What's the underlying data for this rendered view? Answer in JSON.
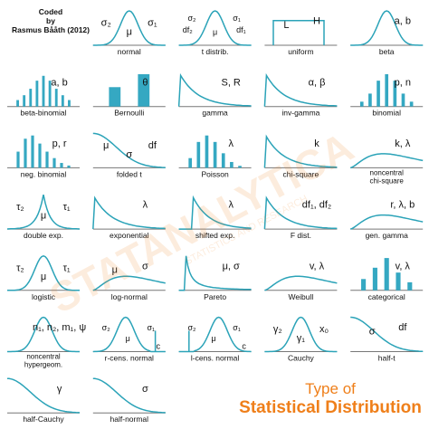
{
  "credit": {
    "line1": "Coded",
    "line2": "by",
    "line3": "Rasmus Bååth (2012)"
  },
  "watermark": {
    "main": "STATANALYTICA",
    "sub": "STATISTICS AND RESEARCH"
  },
  "footer": {
    "line1": "Type of",
    "line2": "Statistical Distribution"
  },
  "colors": {
    "curve": "#2ba3b8",
    "bar": "#35a8c2",
    "baseline": "#777777",
    "text": "#111111",
    "accent": "#ef7f1a"
  },
  "panels": [
    {
      "id": "normal",
      "name": "normal",
      "shape": "bell",
      "params": [
        {
          "t": "σ₂"
        },
        {
          "t": "μ"
        },
        {
          "t": "σ₁"
        }
      ]
    },
    {
      "id": "t",
      "name": "t distrib.",
      "shape": "bell",
      "params": [
        {
          "t": "σ₂"
        },
        {
          "t": "σ₁"
        },
        {
          "t": "df₂"
        },
        {
          "t": "μ"
        },
        {
          "t": "df₁"
        }
      ]
    },
    {
      "id": "uniform",
      "name": "uniform",
      "shape": "uniform",
      "params": [
        {
          "t": "L"
        },
        {
          "t": "H"
        }
      ]
    },
    {
      "id": "beta",
      "name": "beta",
      "shape": "bell",
      "params": [
        {
          "t": "a, b"
        }
      ]
    },
    {
      "id": "betabinom",
      "name": "beta-binomial",
      "shape": "bars",
      "bars": [
        0.2,
        0.35,
        0.55,
        0.8,
        0.95,
        0.8,
        0.55,
        0.35,
        0.2
      ],
      "params": [
        {
          "t": "a, b"
        }
      ]
    },
    {
      "id": "bernoulli",
      "name": "Bernoulli",
      "shape": "bars",
      "bars": [
        0.6,
        1.0
      ],
      "params": [
        {
          "t": "θ"
        }
      ]
    },
    {
      "id": "gamma",
      "name": "gamma",
      "shape": "decay",
      "params": [
        {
          "t": "S, R"
        }
      ]
    },
    {
      "id": "invgamma",
      "name": "inv-gamma",
      "shape": "decay",
      "params": [
        {
          "t": "α, β"
        }
      ]
    },
    {
      "id": "binomial",
      "name": "binomial",
      "shape": "bars",
      "bars": [
        0.15,
        0.4,
        0.8,
        1.0,
        0.8,
        0.4,
        0.15
      ],
      "params": [
        {
          "t": "p, n"
        }
      ]
    },
    {
      "id": "negbinom",
      "name": "neg. binomial",
      "shape": "bars",
      "bars": [
        0.5,
        0.9,
        1.0,
        0.75,
        0.5,
        0.3,
        0.15,
        0.07
      ],
      "params": [
        {
          "t": "p, r"
        }
      ]
    },
    {
      "id": "foldedt",
      "name": "folded t",
      "shape": "halfdecay",
      "params": [
        {
          "t": "μ"
        },
        {
          "t": "σ"
        },
        {
          "t": "df"
        }
      ]
    },
    {
      "id": "poisson",
      "name": "Poisson",
      "shape": "bars",
      "bars": [
        0.3,
        0.8,
        1.0,
        0.8,
        0.45,
        0.18,
        0.06
      ],
      "params": [
        {
          "t": "λ"
        }
      ]
    },
    {
      "id": "chisq",
      "name": "chi-square",
      "shape": "decay",
      "params": [
        {
          "t": "k"
        }
      ]
    },
    {
      "id": "ncchisq",
      "name": "noncentral chi-square",
      "shape": "skew",
      "params": [
        {
          "t": "k, λ"
        }
      ]
    },
    {
      "id": "doubleexp",
      "name": "double exp.",
      "shape": "peak",
      "params": [
        {
          "t": "τ₂"
        },
        {
          "t": "μ"
        },
        {
          "t": "τ₁"
        }
      ]
    },
    {
      "id": "exponential",
      "name": "exponential",
      "shape": "decay",
      "params": [
        {
          "t": "λ"
        }
      ]
    },
    {
      "id": "shiftedexp",
      "name": "shifted exp.",
      "shape": "shifted",
      "params": [
        {
          "t": "λ"
        }
      ]
    },
    {
      "id": "fdist",
      "name": "F dist.",
      "shape": "decay",
      "params": [
        {
          "t": "df₁, df₂"
        }
      ]
    },
    {
      "id": "gengamma",
      "name": "gen. gamma",
      "shape": "skew",
      "params": [
        {
          "t": "r, λ, b"
        }
      ]
    },
    {
      "id": "logistic",
      "name": "logistic",
      "shape": "bell",
      "params": [
        {
          "t": "τ₂"
        },
        {
          "t": "μ"
        },
        {
          "t": "τ₁"
        }
      ]
    },
    {
      "id": "lognormal",
      "name": "log-normal",
      "shape": "skew",
      "params": [
        {
          "t": "μ"
        },
        {
          "t": "σ"
        }
      ]
    },
    {
      "id": "pareto",
      "name": "Pareto",
      "shape": "pareto",
      "params": [
        {
          "t": "μ, σ"
        }
      ]
    },
    {
      "id": "weibull",
      "name": "Weibull",
      "shape": "skew",
      "params": [
        {
          "t": "v, λ"
        }
      ]
    },
    {
      "id": "categorical",
      "name": "categorical",
      "shape": "bars",
      "bars": [
        0.35,
        0.7,
        1.0,
        0.55,
        0.25
      ],
      "params": [
        {
          "t": "v, λ"
        }
      ]
    },
    {
      "id": "ncensnorm",
      "name": "noncentral hypergeom.",
      "shape": "bell",
      "params": [
        {
          "t": "n₁, n₂, m₁, ψ"
        }
      ]
    },
    {
      "id": "rcens",
      "name": "r-cens. normal",
      "shape": "rcens",
      "params": [
        {
          "t": "σ₂"
        },
        {
          "t": "μ"
        },
        {
          "t": "σ₁"
        },
        {
          "t": "c"
        }
      ]
    },
    {
      "id": "lcens",
      "name": "l-cens. normal",
      "shape": "lcens",
      "params": [
        {
          "t": "σ₂"
        },
        {
          "t": "μ"
        },
        {
          "t": "σ₁"
        },
        {
          "t": "c"
        }
      ]
    },
    {
      "id": "cauchy",
      "name": "Cauchy",
      "shape": "bell",
      "params": [
        {
          "t": "γ₂"
        },
        {
          "t": "γ₁"
        },
        {
          "t": "x₀"
        }
      ]
    },
    {
      "id": "halft",
      "name": "half-t",
      "shape": "halfdecay",
      "params": [
        {
          "t": "σ"
        },
        {
          "t": "df"
        }
      ]
    },
    {
      "id": "halfcauchy",
      "name": "half-Cauchy",
      "shape": "halfdecay",
      "params": [
        {
          "t": "γ"
        }
      ]
    },
    {
      "id": "halfnormal",
      "name": "half-normal",
      "shape": "halfdecay",
      "params": [
        {
          "t": "σ"
        }
      ]
    }
  ]
}
